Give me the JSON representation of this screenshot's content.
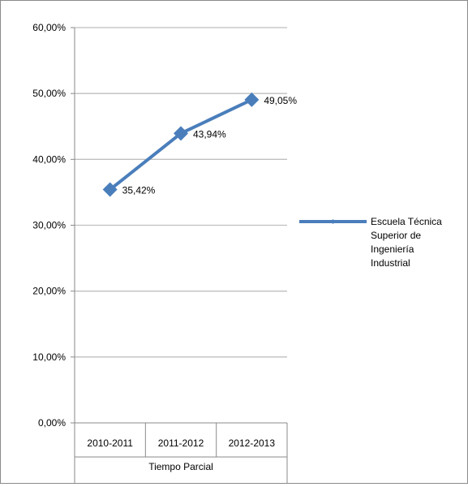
{
  "chart_data": {
    "type": "line",
    "title": "",
    "xlabel": "",
    "ylabel": "",
    "x_group_label": "Tiempo Parcial",
    "categories": [
      "2010-2011",
      "2011-2012",
      "2012-2013"
    ],
    "series": [
      {
        "name": "Escuela Técnica Superior de Ingeniería Industrial",
        "values": [
          35.42,
          43.94,
          49.05
        ],
        "labels": [
          "35,42%",
          "43,94%",
          "49,05%"
        ],
        "color": "#4a7ebb",
        "marker": "diamond"
      }
    ],
    "yticks": [
      0,
      10,
      20,
      30,
      40,
      50,
      60
    ],
    "ytick_labels": [
      "0,00%",
      "10,00%",
      "20,00%",
      "30,00%",
      "40,00%",
      "50,00%",
      "60,00%"
    ],
    "ylim": [
      0,
      60
    ],
    "grid": true,
    "legend": {
      "position": "right",
      "lines": [
        "Escuela Técnica",
        "Superior de",
        "Ingeniería",
        "Industrial"
      ]
    },
    "colors": {
      "grid": "#bfbfbf",
      "axis": "#8a8a8a",
      "text": "#000000"
    }
  }
}
